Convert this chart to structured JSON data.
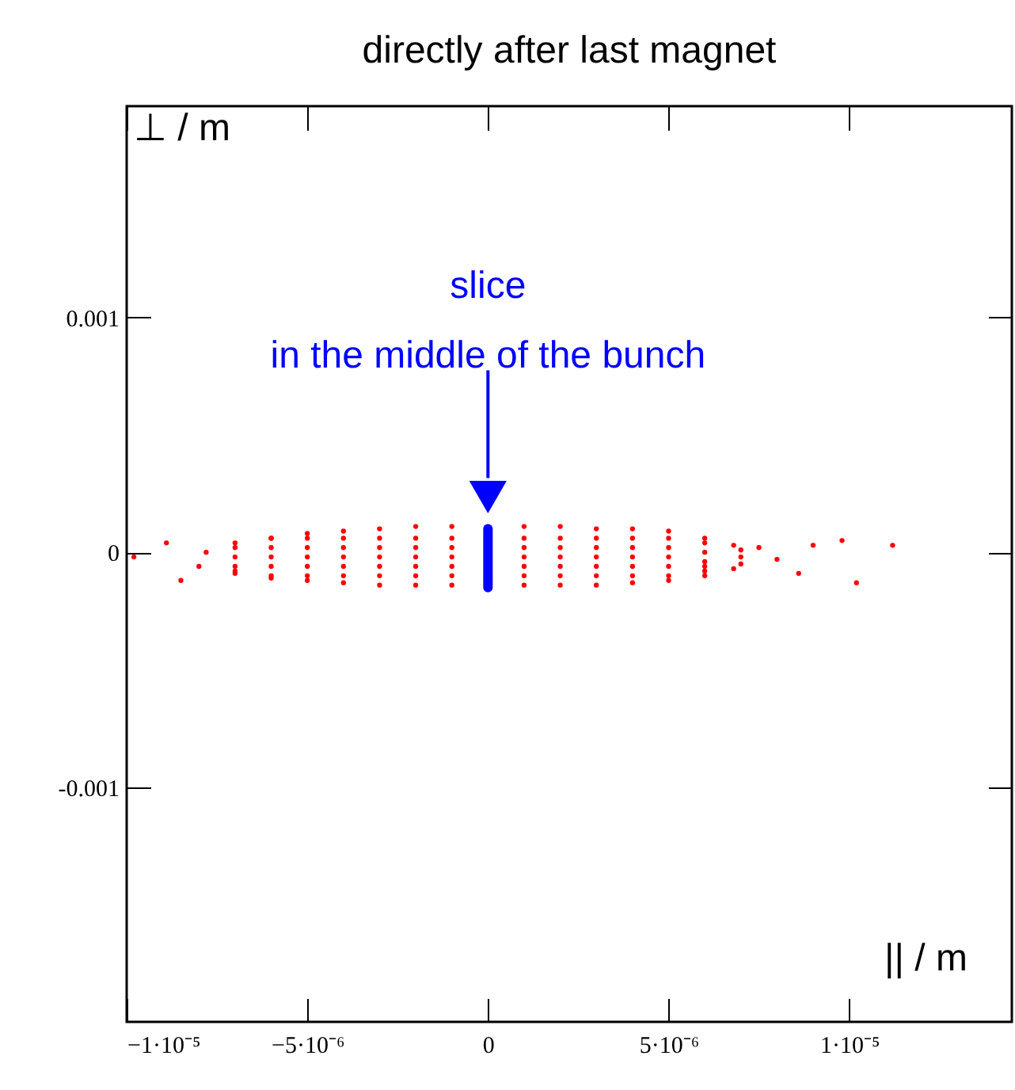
{
  "chart_data": {
    "type": "scatter",
    "title": "directly after last magnet",
    "xlabel": "|| / m",
    "ylabel": "⊥ / m",
    "xlim": [
      -1e-05,
      1.45e-05
    ],
    "ylim": [
      -0.002,
      0.0019
    ],
    "xticks": [
      {
        "value": -1e-05,
        "label": "−1·10⁻⁵"
      },
      {
        "value": -5e-06,
        "label": "−5·10⁻⁶"
      },
      0,
      {
        "value": 5e-06,
        "label": "5·10⁻⁶"
      },
      {
        "value": 1e-05,
        "label": "1·10⁻⁵"
      }
    ],
    "yticks": [
      -0.001,
      0,
      0.001
    ],
    "grid": false,
    "annotations": [
      "slice\nin the middle of the bunch"
    ],
    "series": [
      {
        "color": "#ff0000",
        "marker": "circle",
        "x": [
          -7e-06,
          -6e-06,
          -5e-06,
          -4e-06,
          -3e-06,
          -2e-06,
          -1e-06,
          1e-06,
          2e-06,
          3e-06,
          4e-06,
          5e-06,
          6e-06,
          6.8e-06,
          -7e-06,
          -6e-06,
          -5e-06,
          -4e-06,
          -3e-06,
          -2e-06,
          -1e-06,
          1e-06,
          2e-06,
          3e-06,
          4e-06,
          5e-06,
          6e-06,
          6.8e-06,
          -9.8e-06,
          -8.9e-06,
          -8.5e-06,
          -8e-06,
          -7.8e-06,
          7.5e-06,
          8e-06,
          8.6e-06,
          9e-06,
          9.8e-06,
          1.02e-05,
          1.12e-05,
          -7e-06,
          -7e-06,
          -7e-06,
          -7e-06,
          -6e-06,
          -6e-06,
          -6e-06,
          -6e-06,
          -6e-06,
          -5e-06,
          -5e-06,
          -5e-06,
          -5e-06,
          -5e-06,
          -4e-06,
          -4e-06,
          -4e-06,
          -4e-06,
          -4e-06,
          -3e-06,
          -3e-06,
          -3e-06,
          -3e-06,
          -3e-06,
          -2e-06,
          -2e-06,
          -2e-06,
          -2e-06,
          -2e-06,
          -1e-06,
          -1e-06,
          -1e-06,
          -1e-06,
          -1e-06,
          1e-06,
          1e-06,
          1e-06,
          1e-06,
          1e-06,
          2e-06,
          2e-06,
          2e-06,
          2e-06,
          2e-06,
          3e-06,
          3e-06,
          3e-06,
          3e-06,
          3e-06,
          4e-06,
          4e-06,
          4e-06,
          4e-06,
          4e-06,
          5e-06,
          5e-06,
          5e-06,
          5e-06,
          5e-06,
          6e-06,
          6e-06,
          6e-06,
          6e-06,
          6e-06,
          7e-06,
          7e-06,
          7e-06
        ],
        "values": [
          4e-05,
          6e-05,
          8e-05,
          9e-05,
          0.0001,
          0.00011,
          0.00011,
          0.00011,
          0.00011,
          0.0001,
          0.0001,
          9e-05,
          6e-05,
          3e-05,
          -9e-05,
          -0.00011,
          -0.00012,
          -0.00013,
          -0.00014,
          -0.00014,
          -0.00014,
          -0.00014,
          -0.00014,
          -0.00014,
          -0.00013,
          -0.00012,
          -0.0001,
          -7e-05,
          -2e-05,
          4e-05,
          -0.00012,
          -6e-05,
          0,
          2e-05,
          -3e-05,
          -9e-05,
          3e-05,
          5e-05,
          -0.00013,
          3e-05,
          2e-05,
          -2e-05,
          -6e-05,
          -8e-05,
          6e-05,
          2e-05,
          -2e-05,
          -6e-05,
          -0.0001,
          6e-05,
          2e-05,
          -2e-05,
          -6e-05,
          -0.0001,
          6e-05,
          2e-05,
          -2e-05,
          -6e-05,
          -0.0001,
          6e-05,
          2e-05,
          -2e-05,
          -6e-05,
          -0.0001,
          6e-05,
          2e-05,
          -2e-05,
          -6e-05,
          -0.0001,
          6e-05,
          2e-05,
          -2e-05,
          -6e-05,
          -0.0001,
          6e-05,
          2e-05,
          -2e-05,
          -6e-05,
          -0.0001,
          6e-05,
          2e-05,
          -2e-05,
          -6e-05,
          -0.0001,
          6e-05,
          2e-05,
          -2e-05,
          -6e-05,
          -0.0001,
          6e-05,
          2e-05,
          -2e-05,
          -6e-05,
          -0.0001,
          6e-05,
          2e-05,
          -2e-05,
          -6e-05,
          -0.0001,
          4e-05,
          0,
          -4e-05,
          -6e-05,
          -8e-05,
          1e-05,
          -2e-05,
          -5e-05
        ]
      },
      {
        "type": "line",
        "color": "#0000ff",
        "x": [
          0,
          0
        ],
        "values": [
          -0.00015,
          0.0001
        ]
      }
    ]
  }
}
